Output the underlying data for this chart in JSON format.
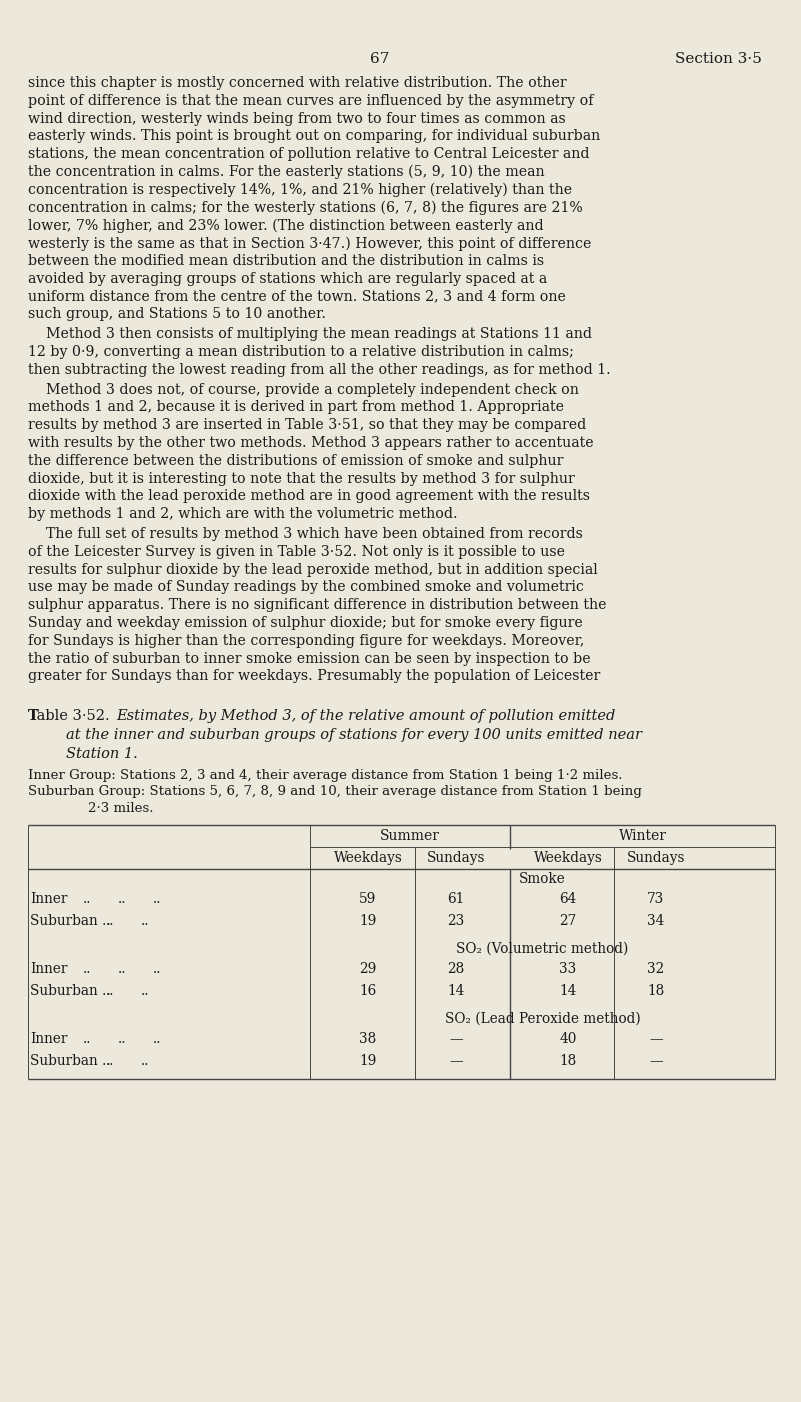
{
  "page_number": "67",
  "section": "Section 3·5",
  "background_color": "#ede8dc",
  "text_color": "#1a1a1a",
  "body_text": [
    "since this chapter is mostly concerned with relative distribution. The other",
    "point of difference is that the mean curves are influenced by the asymmetry of",
    "wind direction, westerly winds being from two to four times as common as",
    "easterly winds. This point is brought out on comparing, for individual suburban",
    "stations, the mean concentration of pollution relative to Central Leicester and",
    "the concentration in calms. For the easterly stations (5, 9, 10) the mean",
    "concentration is respectively 14%, 1%, and 21% higher (relatively) than the",
    "concentration in calms; for the westerly stations (6, 7, 8) the figures are 21%",
    "lower, 7% higher, and 23% lower. (The distinction between easterly and",
    "westerly is the same as that in Section 3·47.) However, this point of difference",
    "between the modified mean distribution and the distribution in calms is",
    "avoided by averaging groups of stations which are regularly spaced at a",
    "uniform distance from the centre of the town. Stations 2, 3 and 4 form one",
    "such group, and Stations 5 to 10 another."
  ],
  "para2": [
    "    Method 3 then consists of multiplying the mean readings at Stations 11 and",
    "12 by 0·9, converting a mean distribution to a relative distribution in calms;",
    "then subtracting the lowest reading from all the other readings, as for method 1."
  ],
  "para3": [
    "    Method 3 does not, of course, provide a completely independent check on",
    "methods 1 and 2, because it is derived in part from method 1. Appropriate",
    "results by method 3 are inserted in Table 3·51, so that they may be compared",
    "with results by the other two methods. Method 3 appears rather to accentuate",
    "the difference between the distributions of emission of smoke and sulphur",
    "dioxide, but it is interesting to note that the results by method 3 for sulphur",
    "dioxide with the lead peroxide method are in good agreement with the results",
    "by methods 1 and 2, which are with the volumetric method."
  ],
  "para4": [
    "    The full set of results by method 3 which have been obtained from records",
    "of the Leicester Survey is given in Table 3·52. Not only is it possible to use",
    "results for sulphur dioxide by the lead peroxide method, but in addition special",
    "use may be made of Sunday readings by the combined smoke and volumetric",
    "sulphur apparatus. There is no significant difference in distribution between the",
    "Sunday and weekday emission of sulphur dioxide; but for smoke every figure",
    "for Sundays is higher than the corresponding figure for weekdays. Moreover,",
    "the ratio of suburban to inner smoke emission can be seen by inspection to be",
    "greater for Sundays than for weekdays. Presumably the population of Leicester"
  ],
  "table_title_line1": "Table 3·52. Estimates, by Method 3, of the relative amount of pollution emitted",
  "table_title_line2": "at the inner and suburban groups of stations for every 100 units emitted near",
  "table_title_line3": "Station 1.",
  "table_note1": "Inner Group: Stations 2, 3 and 4, their average distance from Station 1 being 1·2 miles.",
  "table_note2": "Suburban Group: Stations 5, 6, 7, 8, 9 and 10, their average distance from Station 1 being",
  "table_note3": "        2·3 miles.",
  "season_headers": [
    "Summer",
    "Winter"
  ],
  "col_headers": [
    "Weekdays",
    "Sundays",
    "Weekdays",
    "Sundays"
  ],
  "row_groups": [
    {
      "group_label": "Smoke",
      "rows": [
        {
          "label": "Inner",
          "dots": "..  ..  ..",
          "values": [
            "59",
            "61",
            "64",
            "73"
          ]
        },
        {
          "label": "Suburban ..",
          "dots": "..  ..",
          "values": [
            "19",
            "23",
            "27",
            "34"
          ]
        }
      ]
    },
    {
      "group_label": "SO₂ (Volumetric method)",
      "rows": [
        {
          "label": "Inner",
          "dots": "..  ..  ..",
          "values": [
            "29",
            "28",
            "33",
            "32"
          ]
        },
        {
          "label": "Suburban ..",
          "dots": "..  ..",
          "values": [
            "16",
            "14",
            "14",
            "18"
          ]
        }
      ]
    },
    {
      "group_label": "SO₂ (Lead Peroxide method)",
      "rows": [
        {
          "label": "Inner",
          "dots": "..  ..  ..",
          "values": [
            "38",
            "—",
            "40",
            "—"
          ]
        },
        {
          "label": "Suburban ..",
          "dots": "..  ..",
          "values": [
            "19",
            "—",
            "18",
            "—"
          ]
        }
      ]
    }
  ]
}
